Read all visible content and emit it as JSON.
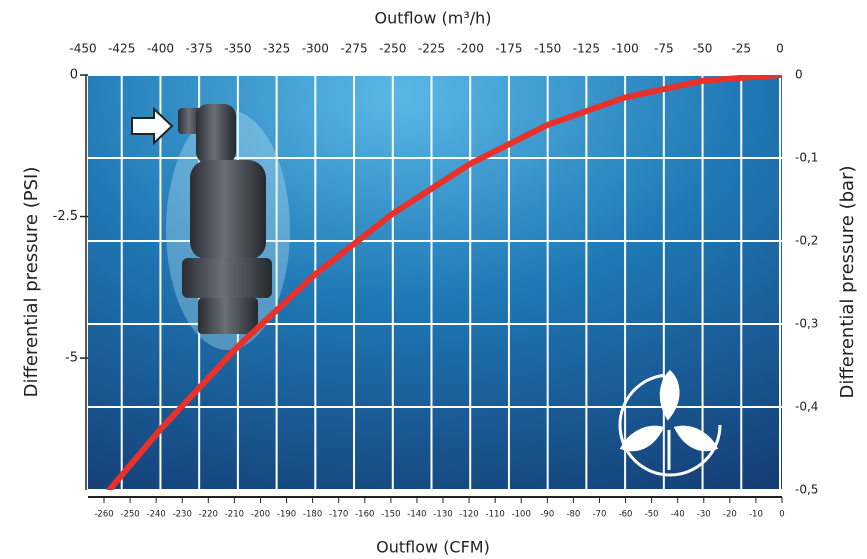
{
  "chart_data": {
    "type": "line",
    "xlabel": "Outflow (m³/h)",
    "x2label": "Outflow (CFM)",
    "ylabel": "Differential pressure (PSI)",
    "y2label": "Differential pressure (bar)",
    "x": [
      0,
      -50,
      -100,
      -150,
      -200,
      -250,
      -300,
      -350,
      -400,
      -433
    ],
    "series": [
      {
        "color": "#e8312a",
        "axis": "y2",
        "values": [
          0,
          -0.007,
          -0.027,
          -0.06,
          -0.107,
          -0.167,
          -0.24,
          -0.327,
          -0.427,
          -0.5
        ]
      }
    ],
    "xlim": [
      -450,
      0
    ],
    "xticks": [
      -450,
      -425,
      -400,
      -375,
      -350,
      -325,
      -300,
      -275,
      -250,
      -225,
      -200,
      -175,
      -150,
      -125,
      -100,
      -75,
      -50,
      -25,
      0
    ],
    "x2lim": [
      -260,
      0
    ],
    "x2ticks": [
      -260,
      -250,
      -240,
      -230,
      -220,
      -210,
      -200,
      -190,
      -180,
      -170,
      -160,
      -150,
      -140,
      -130,
      -120,
      -110,
      -100,
      -90,
      -80,
      -70,
      -60,
      -50,
      -40,
      -30,
      -20,
      -10,
      0
    ],
    "ylim": [
      -7.33,
      0
    ],
    "yticks": [
      0,
      -2.5,
      -5
    ],
    "y2lim": [
      -0.5,
      0
    ],
    "y2ticks": [
      0,
      {
        "value": -0.1,
        "label": "-0,1"
      },
      {
        "value": -0.2,
        "label": "-0,2"
      },
      {
        "value": -0.3,
        "label": "-0,3"
      },
      {
        "value": -0.4,
        "label": "-0,4"
      },
      {
        "value": -0.5,
        "label": "-0,5"
      }
    ],
    "grid": true
  }
}
